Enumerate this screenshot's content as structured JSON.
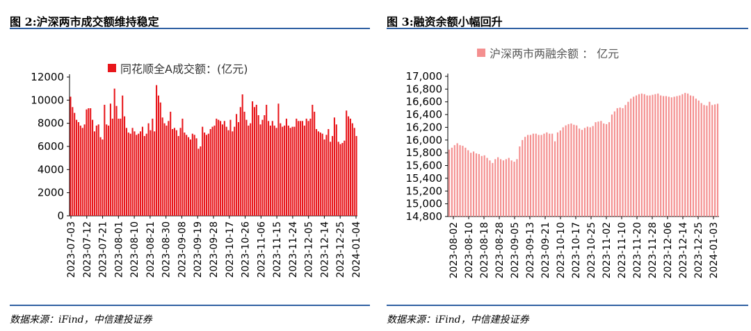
{
  "left": {
    "title": "图 2:沪深两市成交额维持稳定",
    "source": "数据来源：iFind，中信建投证券",
    "color": "#e8161b"
  },
  "right": {
    "title": "图 3:融资余额小幅回升",
    "source": "数据来源：iFind，中信建投证券",
    "color": "#f48f8f"
  },
  "chart_data": [
    {
      "type": "bar",
      "legend": "同花顺全A成交额：(亿元)",
      "ylim": [
        0,
        12000
      ],
      "yticks": [
        0,
        2000,
        4000,
        6000,
        8000,
        10000,
        12000
      ],
      "xtick_labels": [
        "2023-07-03",
        "2023-07-12",
        "2023-07-21",
        "2023-08-01",
        "2023-08-10",
        "2023-08-21",
        "2023-08-30",
        "2023-09-08",
        "2023-09-19",
        "2023-09-28",
        "2023-10-17",
        "2023-10-26",
        "2023-11-06",
        "2023-11-15",
        "2023-11-24",
        "2023-12-05",
        "2023-12-14",
        "2023-12-25",
        "2024-01-04"
      ],
      "values": [
        10300,
        9400,
        8900,
        8300,
        8100,
        7800,
        7600,
        7900,
        9200,
        9300,
        9300,
        8300,
        7300,
        7800,
        7900,
        6800,
        6600,
        9600,
        7900,
        7800,
        9700,
        8400,
        11000,
        9500,
        8400,
        8400,
        10400,
        8600,
        7600,
        7200,
        7100,
        7600,
        7300,
        7000,
        7100,
        7300,
        7700,
        6900,
        7100,
        8000,
        7400,
        8400,
        7300,
        11300,
        10400,
        9800,
        8500,
        8000,
        7800,
        8200,
        9000,
        7500,
        7600,
        7400,
        6900,
        7600,
        8400,
        7200,
        7000,
        6800,
        6600,
        7100,
        7000,
        6700,
        5800,
        6000,
        7700,
        7200,
        7000,
        7100,
        7500,
        7700,
        7800,
        8400,
        8300,
        8200,
        7900,
        8200,
        7700,
        7400,
        8300,
        7300,
        7700,
        8800,
        8100,
        9400,
        10500,
        9000,
        8300,
        7800,
        8000,
        9900,
        9400,
        9600,
        8700,
        7900,
        8300,
        8700,
        9600,
        8200,
        7800,
        8200,
        7800,
        7600,
        9700,
        8000,
        7700,
        7800,
        8400,
        7800,
        7600,
        7700,
        7700,
        8400,
        8200,
        8200,
        8200,
        7800,
        8400,
        8200,
        8400,
        9600,
        9000,
        7500,
        7300,
        7200,
        7100,
        6600,
        7000,
        7500,
        6400,
        6900,
        8500,
        7900,
        6400,
        6200,
        6300,
        6500,
        9100,
        8600,
        8400,
        8000,
        7600,
        6900
      ]
    },
    {
      "type": "bar",
      "legend": "沪深两市两融余额 ： 亿元",
      "ylim": [
        14800,
        17000
      ],
      "yticks": [
        14800,
        15000,
        15200,
        15400,
        15600,
        15800,
        16000,
        16200,
        16400,
        16600,
        16800,
        17000
      ],
      "xtick_labels": [
        "2023-08-02",
        "2023-08-10",
        "2023-08-18",
        "2023-08-28",
        "2023-09-05",
        "2023-09-13",
        "2023-09-21",
        "2023-10-10",
        "2023-10-17",
        "2023-10-25",
        "2023-11-02",
        "2023-11-10",
        "2023-11-20",
        "2023-11-28",
        "2023-12-06",
        "2023-12-14",
        "2023-12-25",
        "2024-01-03"
      ],
      "values": [
        15850,
        15880,
        15920,
        15950,
        15920,
        15910,
        15880,
        15840,
        15800,
        15820,
        15790,
        15780,
        15750,
        15760,
        15720,
        15680,
        15640,
        15700,
        15730,
        15700,
        15680,
        15700,
        15720,
        15680,
        15660,
        15700,
        15900,
        16000,
        16050,
        16080,
        16080,
        16100,
        16100,
        16080,
        16080,
        16100,
        16120,
        16100,
        16100,
        15980,
        16120,
        16150,
        16200,
        16230,
        16250,
        16260,
        16240,
        16230,
        16180,
        16160,
        16190,
        16210,
        16200,
        16220,
        16280,
        16290,
        16300,
        16260,
        16250,
        16280,
        16400,
        16450,
        16500,
        16510,
        16500,
        16550,
        16600,
        16650,
        16680,
        16700,
        16720,
        16730,
        16720,
        16700,
        16700,
        16710,
        16720,
        16730,
        16700,
        16690,
        16690,
        16680,
        16670,
        16680,
        16690,
        16700,
        16720,
        16740,
        16730,
        16700,
        16690,
        16650,
        16620,
        16580,
        16550,
        16540,
        16600,
        16550,
        16560,
        16570
      ]
    }
  ]
}
